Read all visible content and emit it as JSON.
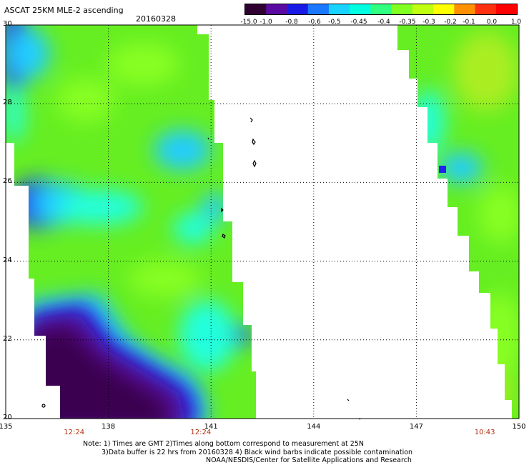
{
  "header": {
    "title": "ASCAT 25KM MLE-2 ascending",
    "date": "20160328"
  },
  "colorbar": {
    "labels": [
      "-15.0",
      "-1.0",
      "-0.8",
      "-0.6",
      "-0.5",
      "-0.45",
      "-0.4",
      "-0.35",
      "-0.3",
      "-0.2",
      "-0.1",
      "0.0",
      "1.0"
    ],
    "colors": [
      "#300030",
      "#5a0aa0",
      "#1a1ae6",
      "#1a78ff",
      "#18d2ff",
      "#00ffe0",
      "#30ff80",
      "#80ff20",
      "#c0ff10",
      "#ffff00",
      "#ff9000",
      "#ff3010",
      "#ff0000"
    ]
  },
  "axes": {
    "lat_ticks": [
      "30",
      "28",
      "26",
      "24",
      "22",
      "20"
    ],
    "lon_ticks": [
      "135",
      "138",
      "141",
      "144",
      "147",
      "150"
    ],
    "lat_range": [
      20,
      30
    ],
    "lon_range": [
      135,
      150
    ]
  },
  "pass_times": [
    {
      "label": "12:24",
      "lon": 137.0
    },
    {
      "label": "12:24",
      "lon": 140.7
    },
    {
      "label": "10:43",
      "lon": 149.0
    }
  ],
  "notes": {
    "line1": "Note: 1) Times are GMT 2)Times along bottom correspond to measurement at 25N",
    "line2": "3)Data buffer is 22 hrs from 20160328 4) Black wind barbs indicate possible contamination",
    "line3": "NOAA/NESDIS/Center for Satellite Applications and Research"
  },
  "swath_colors": {
    "green": "#66ee22",
    "bright_green": "#88ff22",
    "cyan": "#22ffdd",
    "sky": "#22ccff",
    "blue": "#2222ee",
    "purple": "#5a0a9a",
    "dark_purple": "#3a0050",
    "yellow_green": "#aaee22"
  }
}
